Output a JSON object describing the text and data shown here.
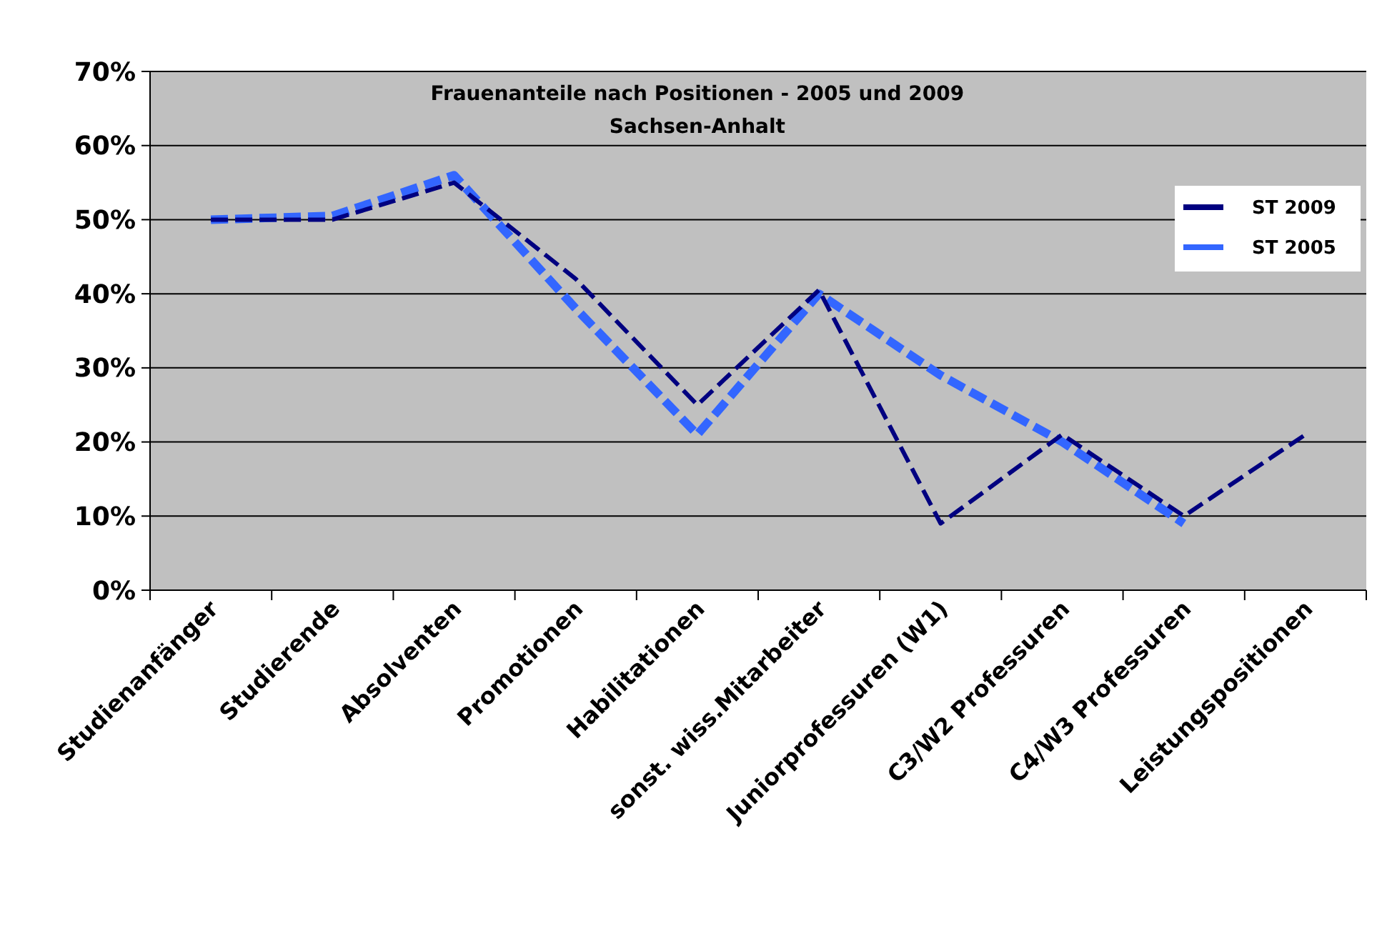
{
  "chart_data": {
    "type": "line",
    "title": "Frauenanteile nach Positionen - 2005 und 2009",
    "subtitle": "Sachsen-Anhalt",
    "categories": [
      "Studienanfänger",
      "Studierende",
      "Absolventen",
      "Promotionen",
      "Habilitationen",
      "sonst. wiss.Mitarbeiter",
      "Juniorprofessuren (W1)",
      "C3/W2 Professuren",
      "C4/W3 Professuren",
      "Leistungspositionen"
    ],
    "series": [
      {
        "name": "ST 2009",
        "color": "#000080",
        "values": [
          50,
          50,
          55,
          42,
          25,
          40.5,
          9,
          21,
          10,
          21
        ]
      },
      {
        "name": "ST 2005",
        "color": "#3366ff",
        "values": [
          50,
          50.5,
          56,
          38,
          21,
          40,
          29,
          20,
          9,
          null
        ]
      }
    ],
    "ylim": [
      0,
      70
    ],
    "yticks": [
      {
        "value": 0,
        "label": "0%"
      },
      {
        "value": 10,
        "label": "10%"
      },
      {
        "value": 20,
        "label": "20%"
      },
      {
        "value": 30,
        "label": "30%"
      },
      {
        "value": 40,
        "label": "40%"
      },
      {
        "value": 50,
        "label": "50%"
      },
      {
        "value": 60,
        "label": "60%"
      },
      {
        "value": 70,
        "label": "70%"
      }
    ],
    "grid": "y",
    "legend": "top right",
    "line_style": "dashed",
    "marker": "none"
  }
}
